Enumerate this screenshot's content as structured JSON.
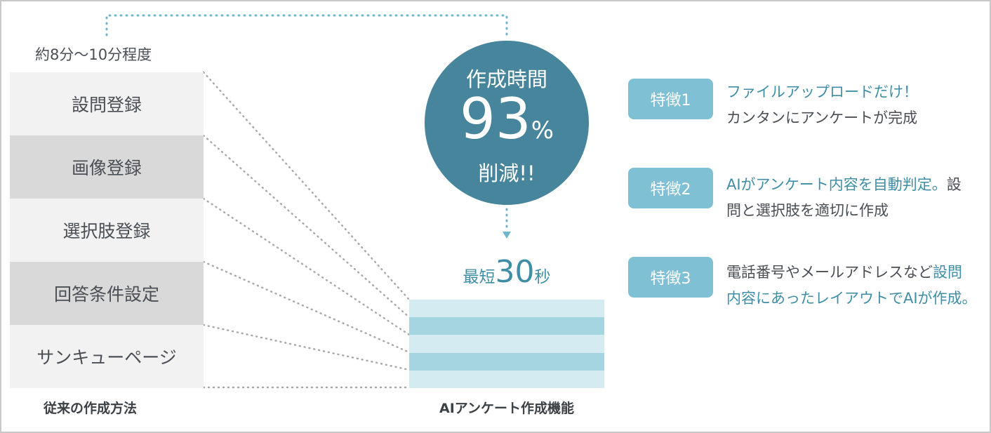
{
  "traditional": {
    "duration": "約8分～10分程度",
    "steps": [
      "設問登録",
      "画像登録",
      "選択肢登録",
      "回答条件設定",
      "サンキューページ"
    ],
    "caption": "従来の作成方法"
  },
  "highlight": {
    "line1": "作成時間",
    "number": "93",
    "unit": "%",
    "line3": "削減!!"
  },
  "ai": {
    "prefix": "最短",
    "number": "30",
    "suffix": "秒",
    "caption": "AIアンケート作成機能"
  },
  "features": [
    {
      "badge": "特徴1",
      "lines": [
        [
          {
            "text": "ファイルアップロードだけ！",
            "style": "teal"
          }
        ],
        [
          {
            "text": "カンタンにアンケートが完成",
            "style": "dark"
          }
        ]
      ]
    },
    {
      "badge": "特徴2",
      "lines": [
        [
          {
            "text": "AIがアンケート内容を自動判定。",
            "style": "teal"
          },
          {
            "text": "設",
            "style": "dark"
          }
        ],
        [
          {
            "text": "問と選択肢を適切に作成",
            "style": "dark"
          }
        ]
      ]
    },
    {
      "badge": "特徴3",
      "lines": [
        [
          {
            "text": "電話番号やメールアドレスなど",
            "style": "dark"
          },
          {
            "text": "設問",
            "style": "teal"
          }
        ],
        [
          {
            "text": "内容にあったレイアウトでAIが作成。",
            "style": "teal"
          }
        ]
      ]
    }
  ],
  "colors": {
    "circle": "#46859b",
    "accent": "#3f8ea6",
    "badge": "#7fc0d4",
    "stripe_light": "#d4ebf1",
    "stripe_dark": "#a6d5e2"
  }
}
